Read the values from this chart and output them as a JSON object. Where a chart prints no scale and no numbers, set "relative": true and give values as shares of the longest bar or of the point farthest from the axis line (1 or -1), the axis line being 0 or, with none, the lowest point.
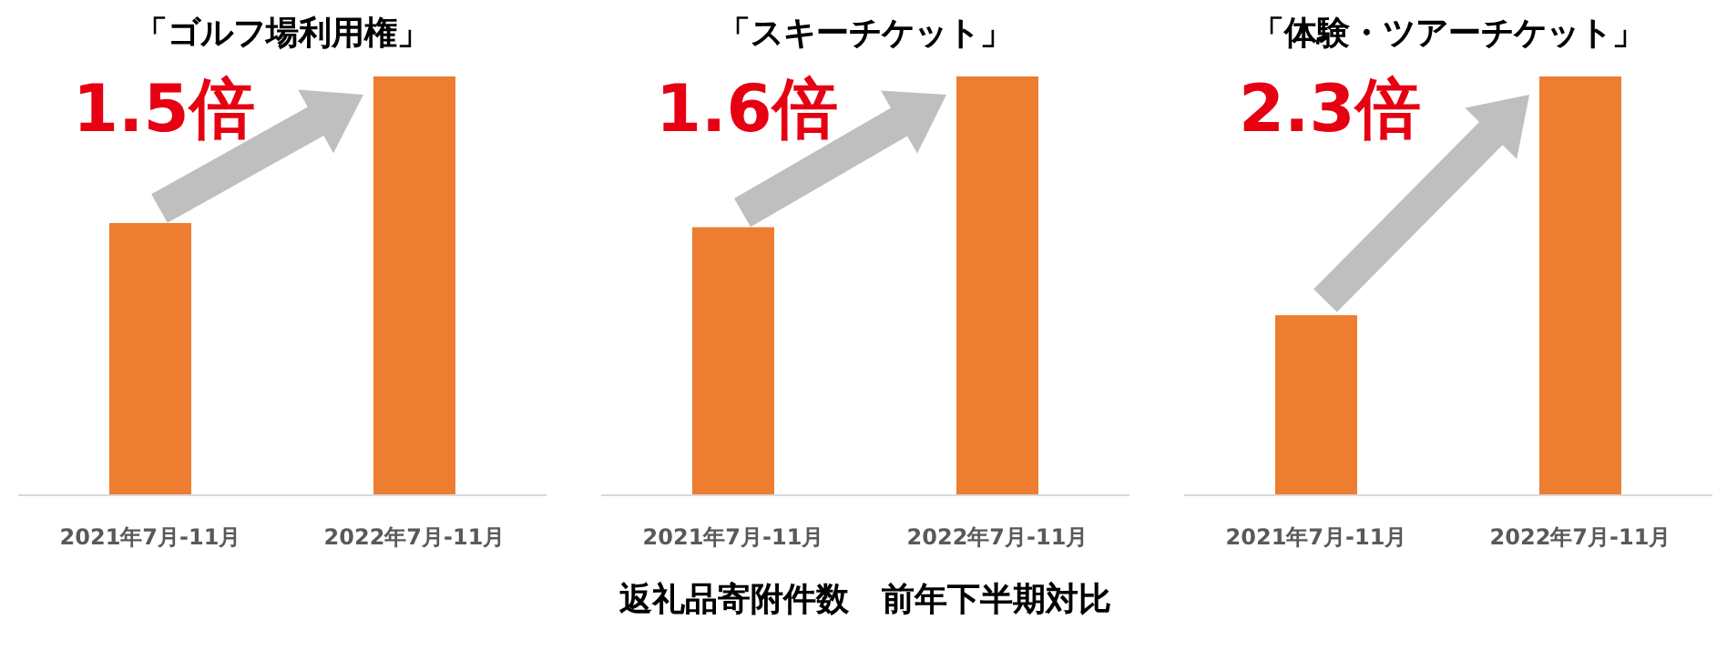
{
  "chart_data": [
    {
      "type": "bar",
      "title": "「ゴルフ場利用権」",
      "categories": [
        "2021年7月-11月",
        "2022年7月-11月"
      ],
      "values": [
        0.65,
        1
      ],
      "color": "#ed7d31",
      "relative": true,
      "annotations": [
        "1.5倍"
      ]
    },
    {
      "type": "bar",
      "title": "「スキーチケット」",
      "categories": [
        "2021年7月-11月",
        "2022年7月-11月"
      ],
      "values": [
        0.64,
        1
      ],
      "color": "#ed7d31",
      "relative": true,
      "annotations": [
        "1.6倍",
        "返礼品寄附件数　前年下半期対比"
      ]
    },
    {
      "type": "bar",
      "title": "「体験・ツアーチケット」",
      "categories": [
        "2021年7月-11月",
        "2022年7月-11月"
      ],
      "values": [
        0.43,
        1
      ],
      "color": "#ed7d31",
      "relative": true,
      "annotations": [
        "2.3倍"
      ]
    }
  ]
}
